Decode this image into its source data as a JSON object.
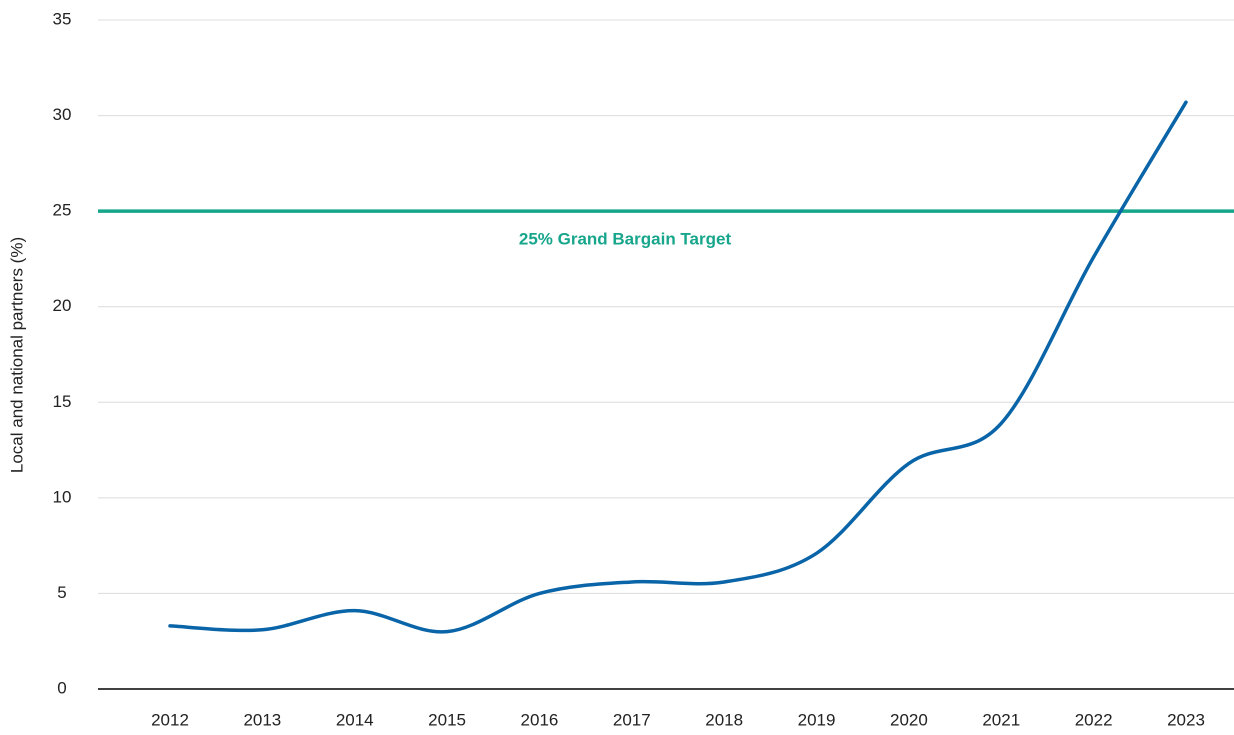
{
  "chart_data": {
    "type": "line",
    "y_label": "Local and national partners (%)",
    "categories": [
      "2012",
      "2013",
      "2014",
      "2015",
      "2016",
      "2017",
      "2018",
      "2019",
      "2020",
      "2021",
      "2022",
      "2023"
    ],
    "series": [
      {
        "name": "Local and national partners",
        "color": "#0a64a8",
        "values": [
          3.3,
          3.1,
          4.1,
          3.0,
          5.0,
          5.6,
          5.6,
          7.1,
          11.8,
          13.9,
          22.6,
          30.7
        ]
      }
    ],
    "ylim": [
      0,
      35
    ],
    "yticks": [
      0,
      5,
      10,
      15,
      20,
      25,
      30,
      35
    ],
    "grid": true,
    "target": {
      "value": 25,
      "label": "25% Grand Bargain Target",
      "color": "#17a68b"
    }
  }
}
